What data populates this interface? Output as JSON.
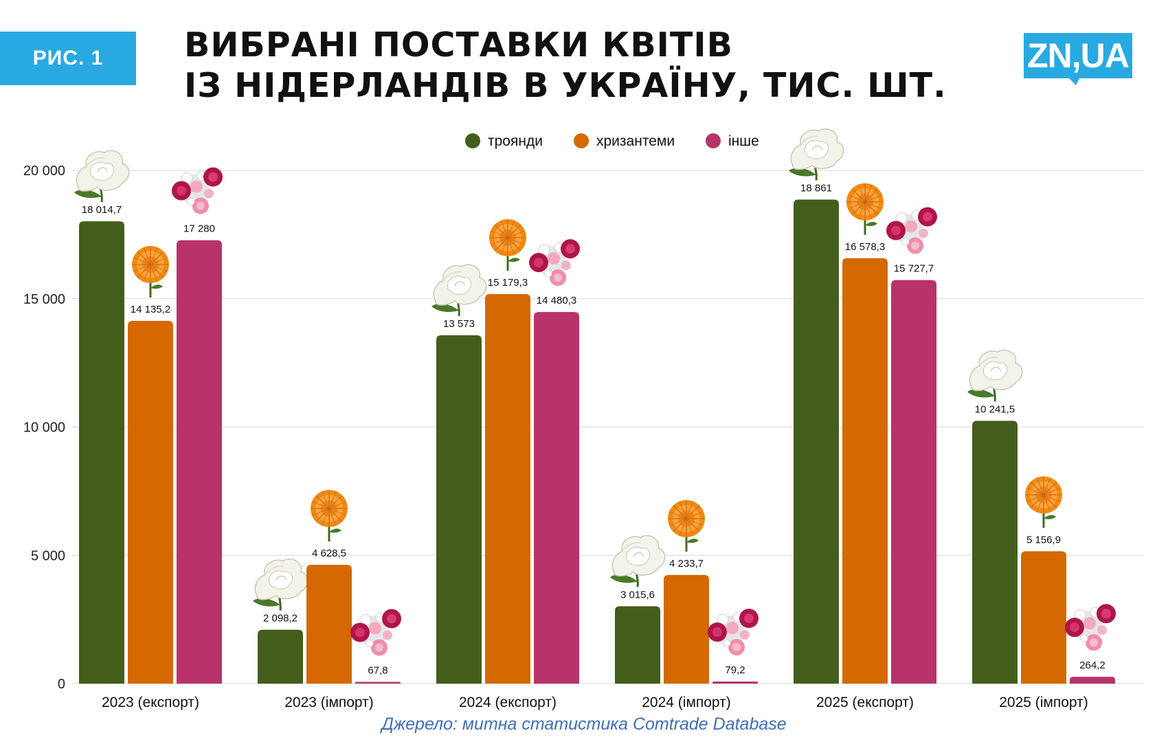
{
  "badge": "РИС. 1",
  "title": [
    "ВИБРАНІ ПОСТАВКИ КВІТІВ",
    "ІЗ НІДЕРЛАНДІВ В УКРАЇНУ, ТИС. ШТ."
  ],
  "logo": "ZN,UA",
  "source": "Джерело: митна статистика Comtrade Database",
  "colors": {
    "accent": "#29a9e1",
    "roses": "#435e1a",
    "chrysanthemums": "#d56800",
    "other": "#b8336a",
    "source_text": "#3f6fb6"
  },
  "icons": {
    "roses": "white-rose-icon",
    "chrysanthemums": "orange-chrysanthemum-icon",
    "other": "mixed-bouquet-icon"
  },
  "chart_data": {
    "type": "bar",
    "title": "ВИБРАНІ ПОСТАВКИ КВІТІВ ІЗ НІДЕРЛАНДІВ В УКРАЇНУ, ТИС. ШТ.",
    "xlabel": "",
    "ylabel": "",
    "ylim": [
      0,
      20000
    ],
    "yticks": [
      0,
      5000,
      10000,
      15000,
      20000
    ],
    "ytick_labels": [
      "0",
      "5 000",
      "10 000",
      "15 000",
      "20 000"
    ],
    "grid": true,
    "legend_position": "top",
    "categories": [
      "2023 (експорт)",
      "2023 (імпорт)",
      "2024 (експорт)",
      "2024 (імпорт)",
      "2025 (експорт)",
      "2025 (імпорт)"
    ],
    "series": [
      {
        "name": "троянди",
        "values": [
          18014.7,
          2098.2,
          13573,
          3015.6,
          18861,
          10241.5
        ],
        "labels": [
          "18 014,7",
          "2 098,2",
          "13 573",
          "3 015,6",
          "18 861",
          "10 241,5"
        ]
      },
      {
        "name": "хризантеми",
        "values": [
          14135.2,
          4628.5,
          15179.3,
          4233.7,
          16578.3,
          5156.9
        ],
        "labels": [
          "14 135,2",
          "4 628,5",
          "15 179,3",
          "4 233,7",
          "16 578,3",
          "5 156,9"
        ]
      },
      {
        "name": "інше",
        "values": [
          17280,
          67.8,
          14480.3,
          79.2,
          15727.7,
          264.2
        ],
        "labels": [
          "17 280",
          "67,8",
          "14 480,3",
          "79,2",
          "15 727,7",
          "264,2"
        ]
      }
    ]
  }
}
